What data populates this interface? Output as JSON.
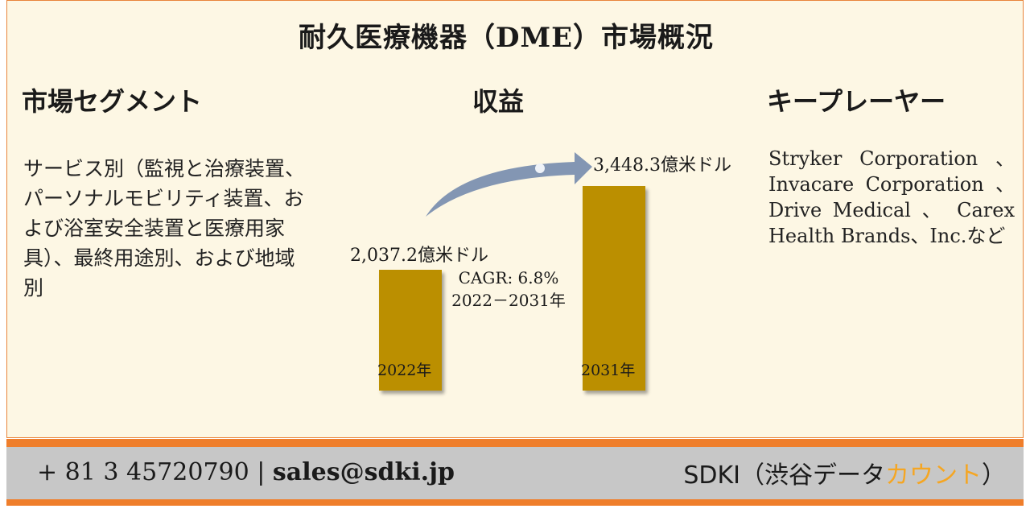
{
  "title": "耐久医療機器（DME）市場概況",
  "sections": {
    "segment": {
      "heading": "市場セグメント",
      "text": "サービス別（監視と治療装置、パーソナルモビリティ装置、および浴室安全装置と医療用家具）、最終用途別、および地域別"
    },
    "revenue": {
      "heading": "収益"
    },
    "players": {
      "heading": "キープレーヤー",
      "text": "Stryker Corporation 、Invacare Corporation 、Drive Medical 、 Carex Health Brands、Inc.など"
    }
  },
  "chart_data": {
    "type": "bar",
    "categories": [
      "2022年",
      "2031年"
    ],
    "values": [
      2037.2,
      3448.3
    ],
    "value_labels": [
      "2,037.2億米ドル",
      "3,448.3億米ドル"
    ],
    "unit": "億米ドル",
    "annotation": {
      "cagr": "CAGR: 6.8%",
      "period": "2022－2031年"
    },
    "colors": {
      "bar": "#bb8f00",
      "arrow": "#8396b3"
    }
  },
  "footer": {
    "phone": "+ 81 3 45720790",
    "separator": "|",
    "email": "sales@sdki.jp",
    "brand_prefix": "SDKI（渋谷デー",
    "brand_mid": "タ",
    "brand_accent": "カウント",
    "brand_suffix": "）"
  },
  "colors": {
    "panel_bg": "#fdf7e4",
    "stripe": "#ef7e2b",
    "footer_bg": "#c7c7c7",
    "brand_accent": "#f5a623"
  }
}
